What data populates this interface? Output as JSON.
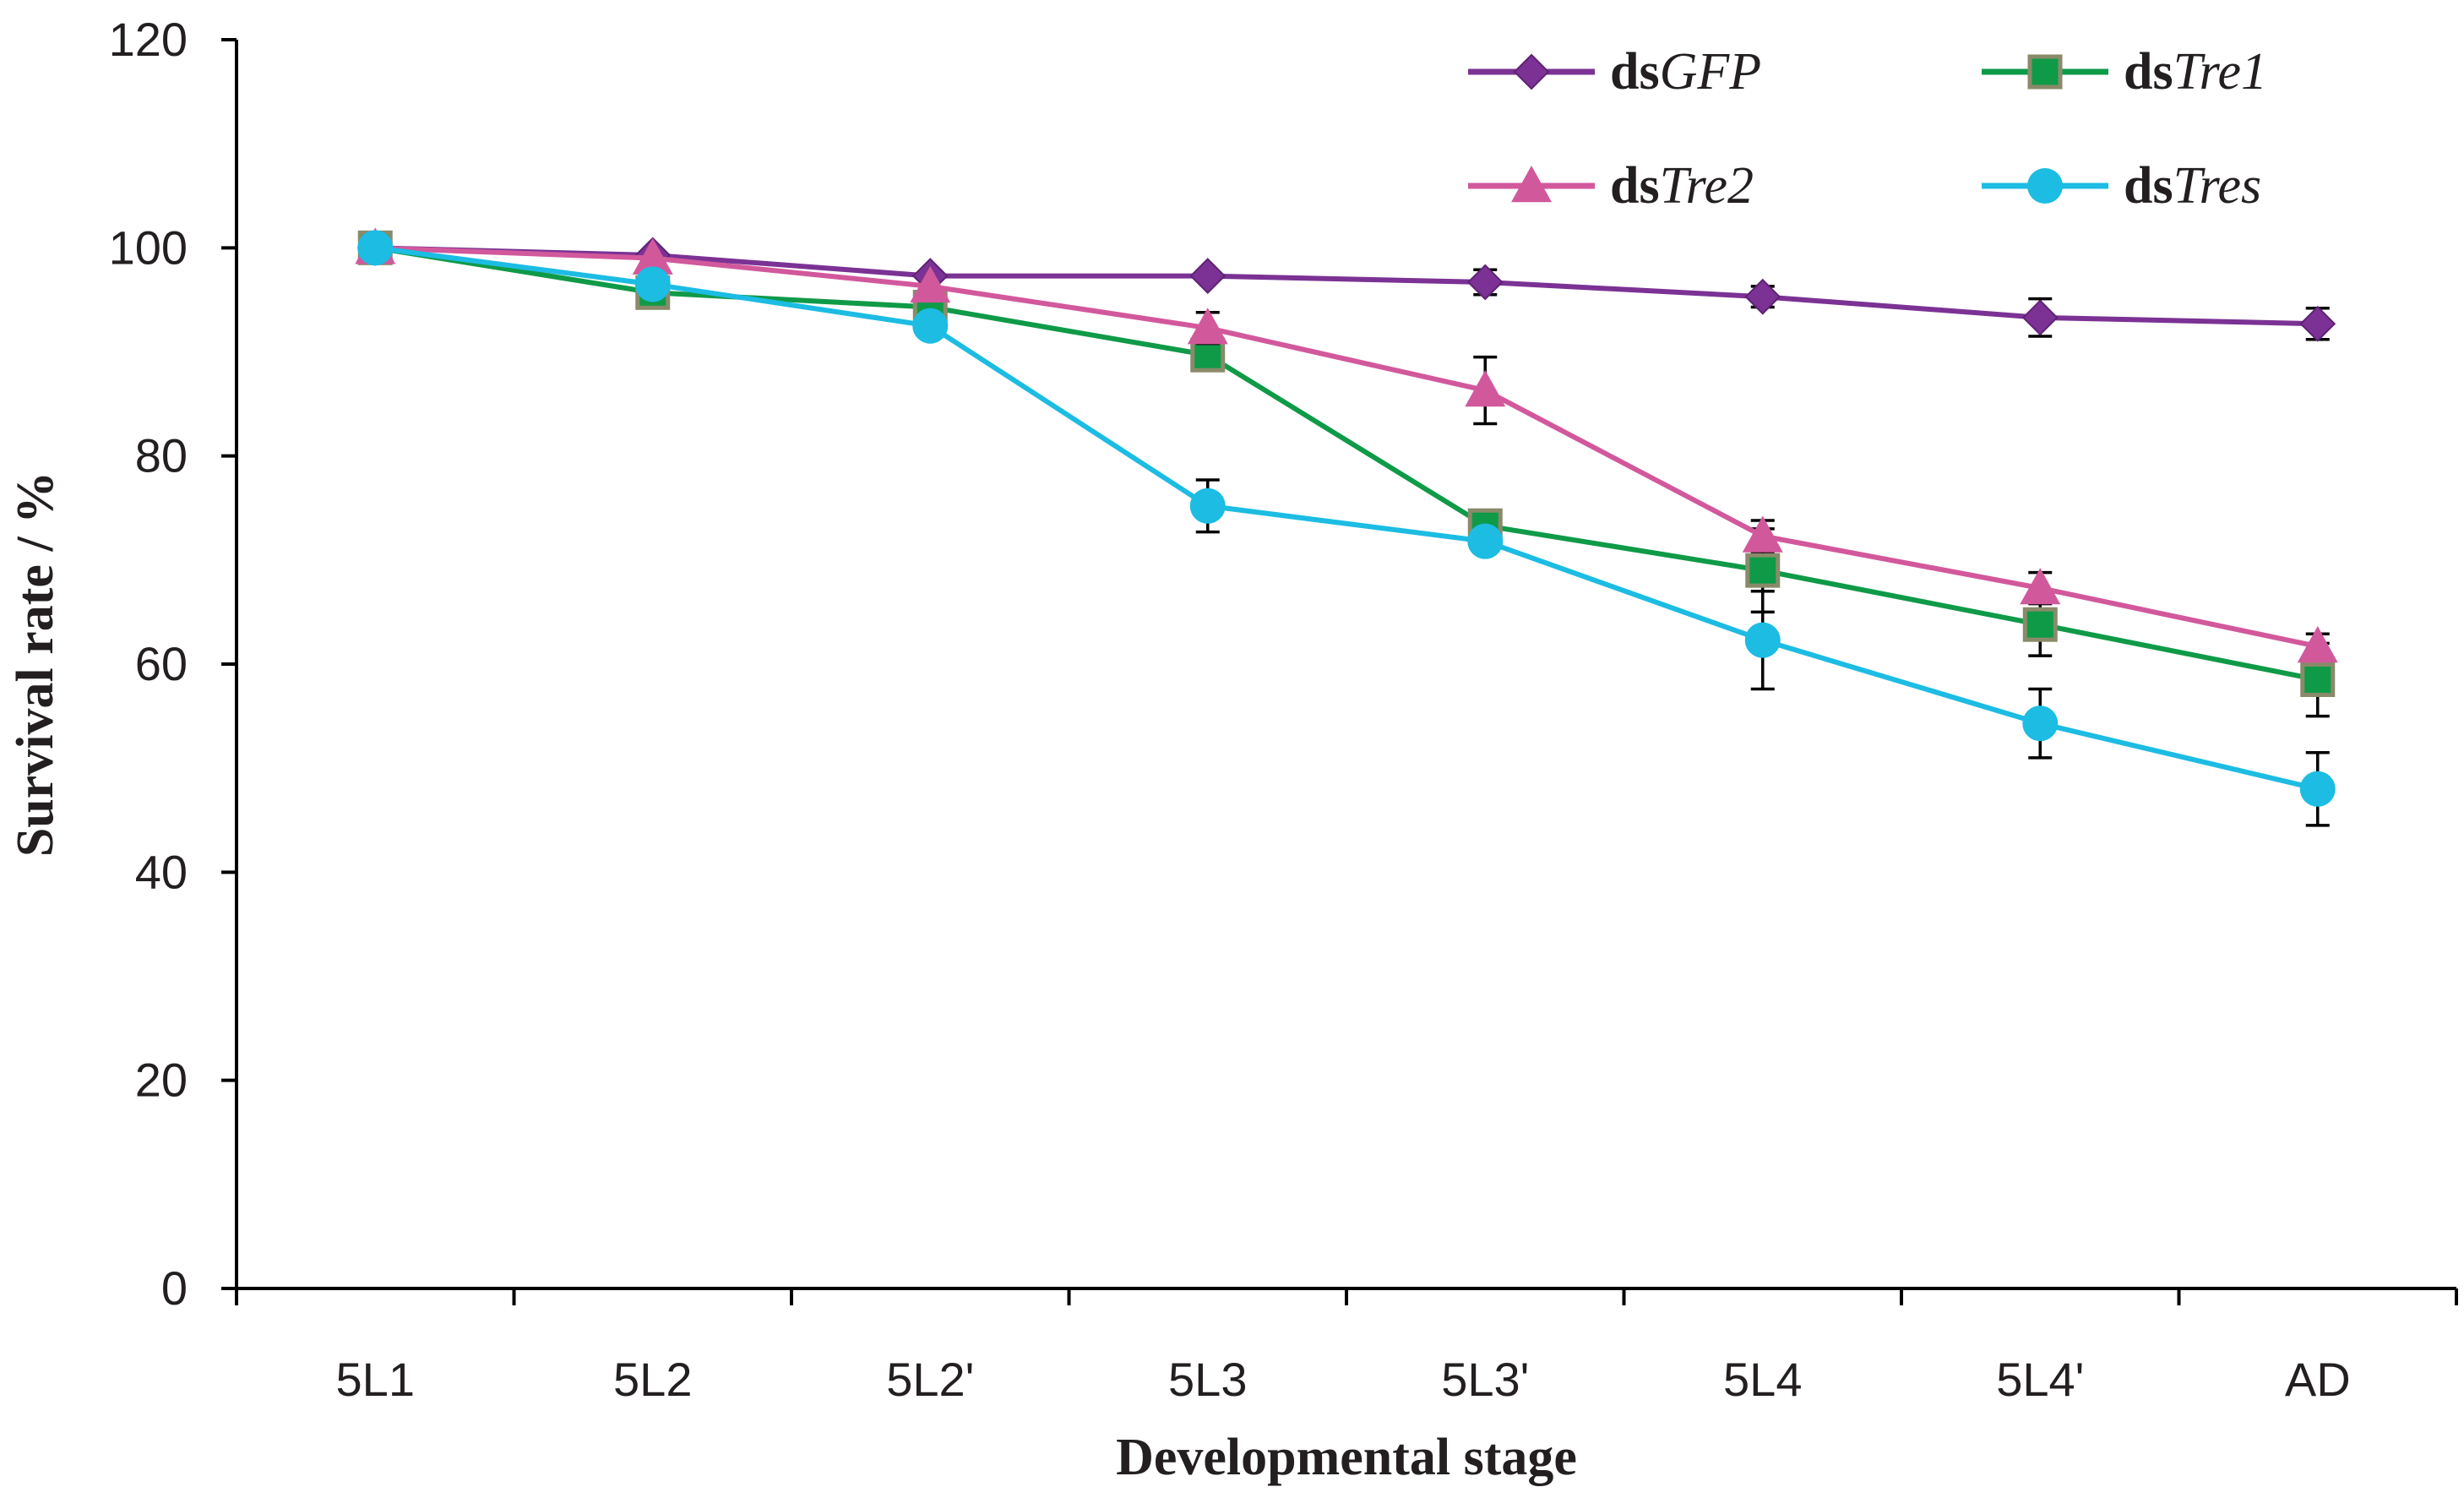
{
  "chart_data": {
    "type": "line",
    "title": "",
    "xlabel": "Developmental stage",
    "ylabel": "Survival rate / %",
    "categories": [
      "5L1",
      "5L2",
      "5L2'",
      "5L3",
      "5L3'",
      "5L4",
      "5L4'",
      "AD"
    ],
    "ylim": [
      0,
      120
    ],
    "yticks": [
      "0",
      "20",
      "40",
      "60",
      "80",
      "100",
      "120"
    ],
    "grid": false,
    "legend_position": "top-right",
    "series": [
      {
        "name": "dsGFP",
        "prefix": "ds",
        "gene": "GFP",
        "marker": "diamond",
        "color": "#7b3294",
        "values": [
          100,
          99.3,
          97.3,
          97.3,
          96.7,
          95.3,
          93.3,
          92.7
        ],
        "errors": [
          0,
          0,
          0,
          0,
          1.2,
          1.0,
          1.8,
          1.5
        ]
      },
      {
        "name": "dsTre1",
        "prefix": "ds",
        "gene": "Tre1",
        "marker": "square",
        "color": "#0f9a48",
        "values": [
          100,
          95.7,
          94.3,
          89.7,
          73.3,
          69.0,
          63.8,
          58.5
        ],
        "errors": [
          0,
          0,
          0,
          1.5,
          1.5,
          4.0,
          3.0,
          3.5
        ]
      },
      {
        "name": "dsTre2",
        "prefix": "ds",
        "gene": "Tre2",
        "marker": "triangle",
        "color": "#d2589c",
        "values": [
          100,
          99.0,
          96.3,
          92.3,
          86.3,
          72.3,
          67.3,
          61.7
        ],
        "errors": [
          0,
          0,
          0,
          1.5,
          3.2,
          1.5,
          1.5,
          1.2
        ]
      },
      {
        "name": "dsTres",
        "prefix": "ds",
        "gene": "Tres",
        "marker": "circle",
        "color": "#1cbce3",
        "values": [
          100,
          96.5,
          92.5,
          75.2,
          71.8,
          62.3,
          54.3,
          48.0
        ],
        "errors": [
          0,
          0,
          0,
          2.5,
          1.0,
          4.7,
          3.3,
          3.5
        ]
      }
    ]
  }
}
